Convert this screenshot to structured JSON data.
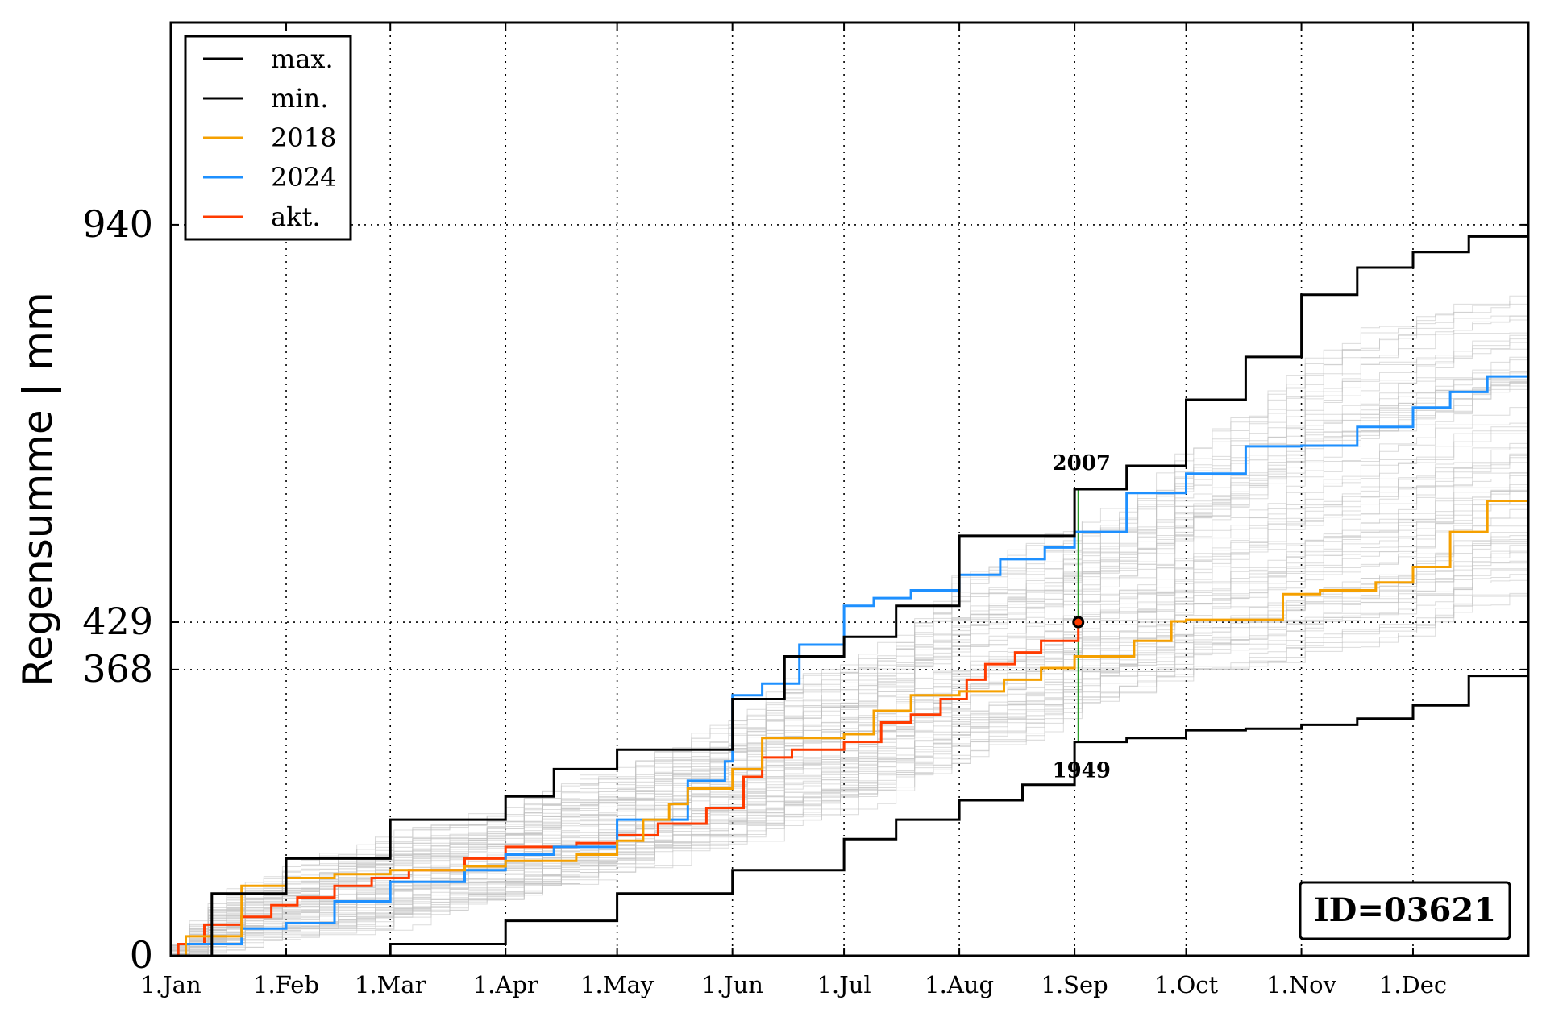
{
  "chart_data": {
    "type": "line",
    "title": "",
    "xlabel": "",
    "ylabel": "Regensumme | mm",
    "x_unit": "day of year",
    "xlim": [
      1,
      366
    ],
    "ylim": [
      0,
      1200
    ],
    "x_ticks": [
      {
        "day": 1,
        "label": "1.Jan"
      },
      {
        "day": 32,
        "label": "1.Feb"
      },
      {
        "day": 60,
        "label": "1.Mar"
      },
      {
        "day": 91,
        "label": "1.Apr"
      },
      {
        "day": 121,
        "label": "1.May"
      },
      {
        "day": 152,
        "label": "1.Jun"
      },
      {
        "day": 182,
        "label": "1.Jul"
      },
      {
        "day": 213,
        "label": "1.Aug"
      },
      {
        "day": 244,
        "label": "1.Sep"
      },
      {
        "day": 274,
        "label": "1.Oct"
      },
      {
        "day": 305,
        "label": "1.Nov"
      },
      {
        "day": 335,
        "label": "1.Dec"
      }
    ],
    "y_ticks": [
      {
        "value": 0,
        "label": "0"
      },
      {
        "value": 368,
        "label": "368"
      },
      {
        "value": 429,
        "label": "429"
      },
      {
        "value": 940,
        "label": "940"
      }
    ],
    "grid": true,
    "legend_position": "top-left",
    "series": [
      {
        "name": "max.",
        "color": "#000000",
        "x": [
          1,
          12,
          32,
          60,
          91,
          104,
          121,
          152,
          166,
          182,
          196,
          213,
          244,
          258,
          274,
          290,
          305,
          320,
          335,
          350,
          366
        ],
        "y": [
          0,
          80,
          125,
          175,
          205,
          240,
          265,
          330,
          385,
          410,
          450,
          540,
          600,
          630,
          715,
          770,
          850,
          885,
          905,
          925,
          940
        ]
      },
      {
        "name": "min.",
        "color": "#000000",
        "x": [
          1,
          40,
          60,
          91,
          121,
          152,
          182,
          196,
          213,
          230,
          244,
          258,
          274,
          290,
          305,
          320,
          335,
          350,
          366
        ],
        "y": [
          0,
          0,
          15,
          45,
          80,
          110,
          150,
          175,
          200,
          220,
          275,
          280,
          290,
          292,
          297,
          305,
          322,
          360,
          368
        ]
      },
      {
        "name": "2018",
        "color": "#f5a000",
        "x": [
          1,
          5,
          20,
          32,
          45,
          60,
          80,
          91,
          110,
          121,
          128,
          135,
          140,
          152,
          160,
          182,
          190,
          200,
          213,
          225,
          235,
          244,
          260,
          270,
          274,
          290,
          300,
          310,
          325,
          335,
          345,
          355,
          366
        ],
        "y": [
          0,
          25,
          90,
          100,
          105,
          110,
          115,
          122,
          130,
          148,
          175,
          195,
          215,
          240,
          280,
          285,
          315,
          335,
          340,
          355,
          370,
          385,
          405,
          430,
          432,
          432,
          465,
          470,
          480,
          500,
          545,
          585,
          600
        ]
      },
      {
        "name": "2024",
        "color": "#1e90ff",
        "x": [
          1,
          5,
          20,
          32,
          45,
          60,
          80,
          91,
          104,
          121,
          130,
          140,
          150,
          152,
          160,
          170,
          182,
          190,
          200,
          213,
          224,
          236,
          244,
          258,
          274,
          290,
          305,
          320,
          335,
          345,
          355,
          366
        ],
        "y": [
          0,
          15,
          35,
          42,
          70,
          95,
          110,
          130,
          140,
          175,
          175,
          225,
          250,
          335,
          350,
          400,
          450,
          460,
          470,
          490,
          510,
          525,
          545,
          595,
          620,
          655,
          656,
          680,
          705,
          725,
          745,
          720
        ]
      },
      {
        "name": "akt.",
        "color": "#ff3b00",
        "x": [
          1,
          3,
          10,
          20,
          28,
          35,
          45,
          55,
          65,
          80,
          91,
          110,
          121,
          132,
          145,
          155,
          160,
          168,
          182,
          192,
          200,
          208,
          215,
          220,
          228,
          235,
          245
        ],
        "y": [
          0,
          15,
          40,
          50,
          65,
          75,
          90,
          100,
          110,
          125,
          140,
          145,
          155,
          170,
          190,
          230,
          255,
          265,
          275,
          300,
          310,
          330,
          355,
          375,
          390,
          405,
          429
        ]
      }
    ],
    "current_point": {
      "x": 245,
      "y": 429,
      "color": "#ff3b00"
    },
    "annotations": [
      {
        "text": "2007",
        "x": 245,
        "y": 600
      },
      {
        "text": "1949",
        "x": 245,
        "y": 275
      }
    ],
    "background_series_color": "#c0c0c0"
  },
  "id_label": "ID=03621"
}
